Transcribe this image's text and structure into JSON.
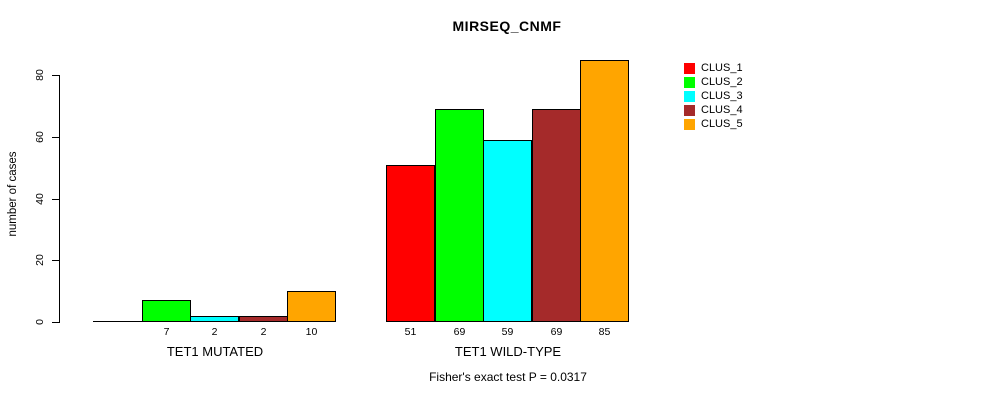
{
  "chart_data": {
    "type": "bar",
    "title": "MIRSEQ_CNMF",
    "ylabel": "number of cases",
    "caption": "Fisher's exact test P = 0.0317",
    "yticks": [
      0,
      20,
      40,
      60,
      80
    ],
    "ylim": [
      0,
      85
    ],
    "grid": false,
    "legend_position": "right",
    "categories": [
      "TET1 MUTATED",
      "TET1 WILD-TYPE"
    ],
    "series": [
      {
        "name": "CLUS_1",
        "color": "#ff0000",
        "values": [
          0,
          51
        ]
      },
      {
        "name": "CLUS_2",
        "color": "#00ff00",
        "values": [
          7,
          69
        ]
      },
      {
        "name": "CLUS_3",
        "color": "#00ffff",
        "values": [
          2,
          59
        ]
      },
      {
        "name": "CLUS_4",
        "color": "#a52a2a",
        "values": [
          2,
          69
        ]
      },
      {
        "name": "CLUS_5",
        "color": "#ffa500",
        "values": [
          10,
          85
        ]
      }
    ],
    "bar_value_labels": [
      [
        "",
        "7",
        "2",
        "2",
        "10"
      ],
      [
        "51",
        "69",
        "59",
        "69",
        "85"
      ]
    ]
  }
}
